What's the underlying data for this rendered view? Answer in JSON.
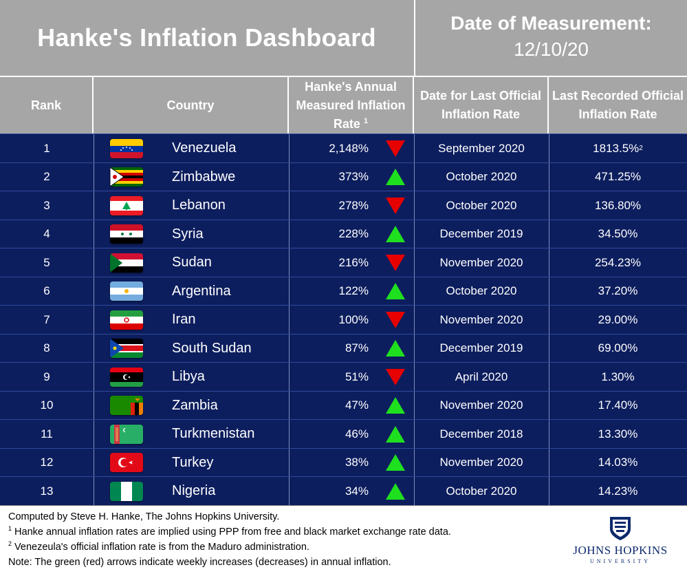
{
  "title": "Hanke's Inflation Dashboard",
  "date_label": "Date of Measurement:",
  "date_value": "12/10/20",
  "headers": {
    "rank": "Rank",
    "country": "Country",
    "hanke_line1": "Hanke's Annual",
    "hanke_line2": "Measured Inflation",
    "hanke_line3": "Rate",
    "hanke_note": "1",
    "date_line1": "Date for Last Official",
    "date_line2": "Inflation Rate",
    "official_line1": "Last Recorded Official",
    "official_line2": "Inflation Rate"
  },
  "colors": {
    "header_bg": "#a6a6a6",
    "table_bg": "#0d1e5e",
    "arrow_up": "#1fe01f",
    "arrow_down": "#e60000"
  },
  "rows": [
    {
      "rank": "1",
      "country": "Venezuela",
      "flag": "venezuela",
      "rate": "2,148%",
      "arrow": "down",
      "date": "September 2020",
      "official": "1813.5%",
      "official_note": "2"
    },
    {
      "rank": "2",
      "country": "Zimbabwe",
      "flag": "zimbabwe",
      "rate": "373%",
      "arrow": "up",
      "date": "October 2020",
      "official": "471.25%",
      "official_note": ""
    },
    {
      "rank": "3",
      "country": "Lebanon",
      "flag": "lebanon",
      "rate": "278%",
      "arrow": "down",
      "date": "October 2020",
      "official": "136.80%",
      "official_note": ""
    },
    {
      "rank": "4",
      "country": "Syria",
      "flag": "syria",
      "rate": "228%",
      "arrow": "up",
      "date": "December 2019",
      "official": "34.50%",
      "official_note": ""
    },
    {
      "rank": "5",
      "country": "Sudan",
      "flag": "sudan",
      "rate": "216%",
      "arrow": "down",
      "date": "November 2020",
      "official": "254.23%",
      "official_note": ""
    },
    {
      "rank": "6",
      "country": "Argentina",
      "flag": "argentina",
      "rate": "122%",
      "arrow": "up",
      "date": "October 2020",
      "official": "37.20%",
      "official_note": ""
    },
    {
      "rank": "7",
      "country": "Iran",
      "flag": "iran",
      "rate": "100%",
      "arrow": "down",
      "date": "November 2020",
      "official": "29.00%",
      "official_note": ""
    },
    {
      "rank": "8",
      "country": "South Sudan",
      "flag": "south-sudan",
      "rate": "87%",
      "arrow": "up",
      "date": "December 2019",
      "official": "69.00%",
      "official_note": ""
    },
    {
      "rank": "9",
      "country": "Libya",
      "flag": "libya",
      "rate": "51%",
      "arrow": "down",
      "date": "April 2020",
      "official": "1.30%",
      "official_note": ""
    },
    {
      "rank": "10",
      "country": "Zambia",
      "flag": "zambia",
      "rate": "47%",
      "arrow": "up",
      "date": "November 2020",
      "official": "17.40%",
      "official_note": ""
    },
    {
      "rank": "11",
      "country": "Turkmenistan",
      "flag": "turkmenistan",
      "rate": "46%",
      "arrow": "up",
      "date": "December 2018",
      "official": "13.30%",
      "official_note": ""
    },
    {
      "rank": "12",
      "country": "Turkey",
      "flag": "turkey",
      "rate": "38%",
      "arrow": "up",
      "date": "November 2020",
      "official": "14.03%",
      "official_note": ""
    },
    {
      "rank": "13",
      "country": "Nigeria",
      "flag": "nigeria",
      "rate": "34%",
      "arrow": "up",
      "date": "October 2020",
      "official": "14.23%",
      "official_note": ""
    }
  ],
  "footer": {
    "line1": "Computed by Steve H. Hanke, The Johns Hopkins University.",
    "note1_mark": "1",
    "note1": " Hanke annual inflation rates are implied using PPP from free and black market exchange rate data.",
    "note2_mark": "2",
    "note2": " Venezeula's official inflation rate is from the Maduro administration.",
    "note3": "Note: The green (red) arrows indicate weekly increases (decreases) in annual inflation."
  },
  "logo": {
    "name": "JOHNS HOPKINS",
    "sub": "UNIVERSITY",
    "icon": "jhu-shield-icon"
  }
}
